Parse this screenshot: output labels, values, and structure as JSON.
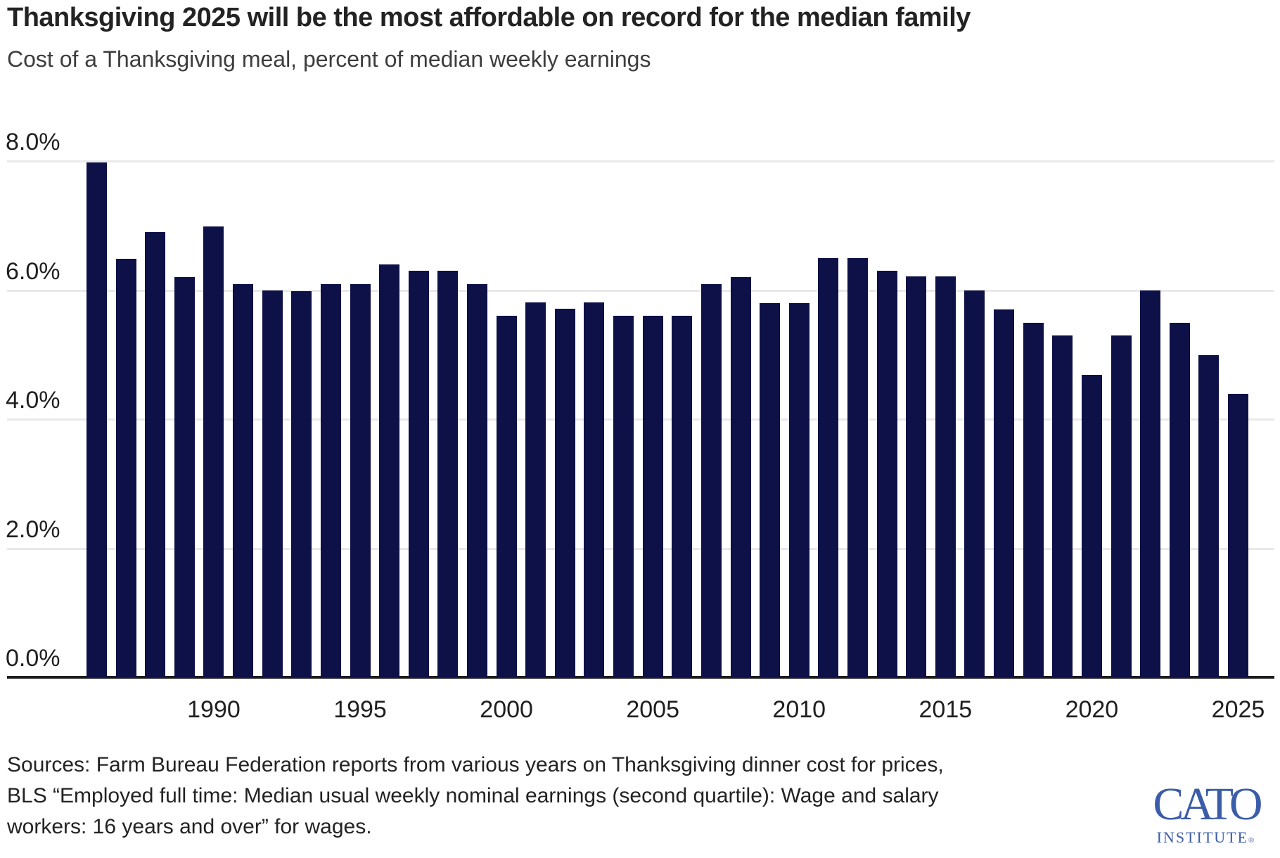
{
  "header": {
    "title": "Thanksgiving 2025 will be the most affordable on record for the median family",
    "subtitle": "Cost of a Thanksgiving meal, percent of median weekly earnings"
  },
  "chart_data": {
    "type": "bar",
    "title": "Thanksgiving 2025 will be the most affordable on record for the median family",
    "subtitle": "Cost of a Thanksgiving meal, percent of median weekly earnings",
    "ylabel": "Cost of a Thanksgiving meal, percent of median weekly earnings",
    "xlabel": "",
    "ylim": [
      0,
      8
    ],
    "grid": true,
    "bar_color": "#0e1048",
    "gridline_color": "#e9e9e9",
    "axis_color": "#1c1c1c",
    "yticks": [
      0,
      2,
      4,
      6,
      8
    ],
    "ytick_labels": [
      "0.0%",
      "2.0%",
      "4.0%",
      "6.0%",
      "8.0%"
    ],
    "xtick_years": [
      1990,
      1995,
      2000,
      2005,
      2010,
      2015,
      2020,
      2025
    ],
    "years": [
      1986,
      1987,
      1988,
      1989,
      1990,
      1991,
      1992,
      1993,
      1994,
      1995,
      1996,
      1997,
      1998,
      1999,
      2000,
      2001,
      2002,
      2003,
      2004,
      2005,
      2006,
      2007,
      2008,
      2009,
      2010,
      2011,
      2012,
      2013,
      2014,
      2015,
      2016,
      2017,
      2018,
      2019,
      2020,
      2021,
      2022,
      2023,
      2024,
      2025
    ],
    "values": [
      7.98,
      6.49,
      6.9,
      6.2,
      6.99,
      6.09,
      5.99,
      5.98,
      6.09,
      6.09,
      6.4,
      6.3,
      6.3,
      6.09,
      5.6,
      5.81,
      5.71,
      5.81,
      5.6,
      5.6,
      5.6,
      6.09,
      6.2,
      5.8,
      5.8,
      6.5,
      6.5,
      6.3,
      6.21,
      6.21,
      5.99,
      5.7,
      5.49,
      5.3,
      4.69,
      5.3,
      6.0,
      5.49,
      4.99,
      4.39
    ]
  },
  "sources": {
    "lines": [
      "Sources: Farm Bureau Federation reports from various years on Thanksgiving dinner cost for prices,",
      "BLS “Employed full time: Median usual weekly nominal earnings (second quartile): Wage and salary",
      "workers: 16 years and over” for wages."
    ]
  },
  "logo": {
    "brand": "CATO",
    "sub": "INSTITUTE",
    "reg": "®",
    "color": "#3b5ca8"
  }
}
